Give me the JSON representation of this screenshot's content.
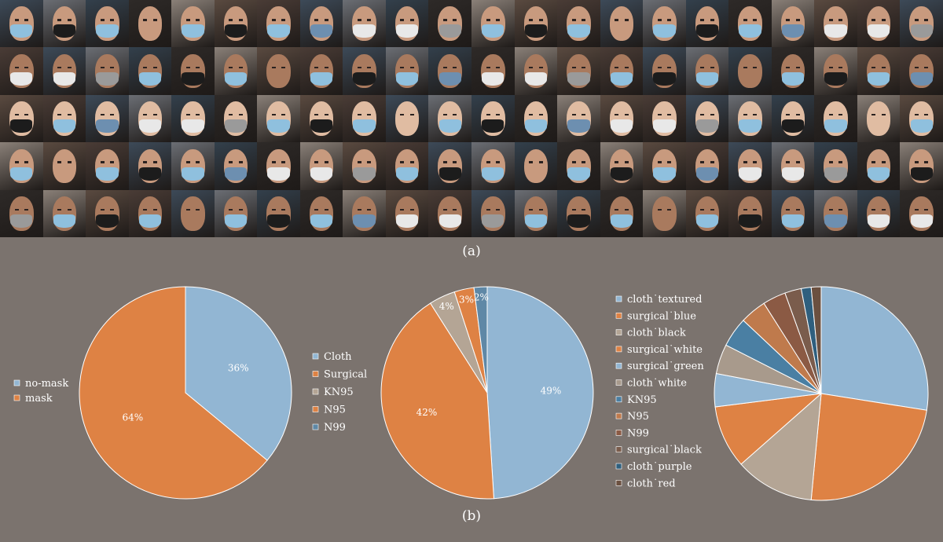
{
  "figure": {
    "label_a": "(a)",
    "label_b": "(b)"
  },
  "photo_grid": {
    "rows": 5,
    "cols": 22,
    "mask_palette": {
      "blue": "#8fc0de",
      "black": "#1c1c1c",
      "white": "#e8e8e8",
      "gray": "#9a9a9a",
      "print": "#6d8fb0"
    }
  },
  "chart_data": [
    {
      "type": "pie",
      "legend_position": "left",
      "start_angle_deg": 0,
      "categories": [
        "no-mask",
        "mask"
      ],
      "values": [
        36,
        64
      ],
      "percent_labels": [
        "36%",
        "64%"
      ],
      "colors": [
        "#92b6d3",
        "#de8244"
      ],
      "legend": [
        "no-mask",
        "mask"
      ]
    },
    {
      "type": "pie",
      "legend_position": "left",
      "start_angle_deg": 0,
      "categories": [
        "Cloth",
        "Surgical",
        "KN95",
        "N95",
        "N99"
      ],
      "values": [
        49,
        42,
        4,
        3,
        2
      ],
      "percent_labels": [
        "49%",
        "42%",
        "4%",
        "3%",
        "2%"
      ],
      "colors": [
        "#92b6d3",
        "#de8244",
        "#b4a595",
        "#de8244",
        "#5f88a6"
      ],
      "legend": [
        "Cloth",
        "Surgical",
        "KN95",
        "N95",
        "N99"
      ]
    },
    {
      "type": "pie",
      "legend_position": "left",
      "start_angle_deg": 0,
      "categories": [
        "cloth˙textured",
        "surgical˙blue",
        "cloth˙black",
        "surgical˙white",
        "surgical˙green",
        "cloth˙white",
        "KN95",
        "N95",
        "N99",
        "surgical˙black",
        "cloth˙purple",
        "cloth˙red"
      ],
      "values": [
        27.5,
        24,
        12,
        9.5,
        5,
        4.5,
        4.5,
        4,
        3.5,
        2.5,
        1.5,
        1.5
      ],
      "colors": [
        "#92b6d3",
        "#de8244",
        "#b4a595",
        "#de8244",
        "#92b6d3",
        "#a89a8c",
        "#4a7fa3",
        "#bf7a4c",
        "#8b5a44",
        "#7a5c4c",
        "#2f5f7e",
        "#6b5040"
      ],
      "legend": [
        "cloth˙textured",
        "surgical˙blue",
        "cloth˙black",
        "surgical˙white",
        "surgical˙green",
        "cloth˙white",
        "KN95",
        "N95",
        "N99",
        "surgical˙black",
        "cloth˙purple",
        "cloth˙red"
      ]
    }
  ]
}
